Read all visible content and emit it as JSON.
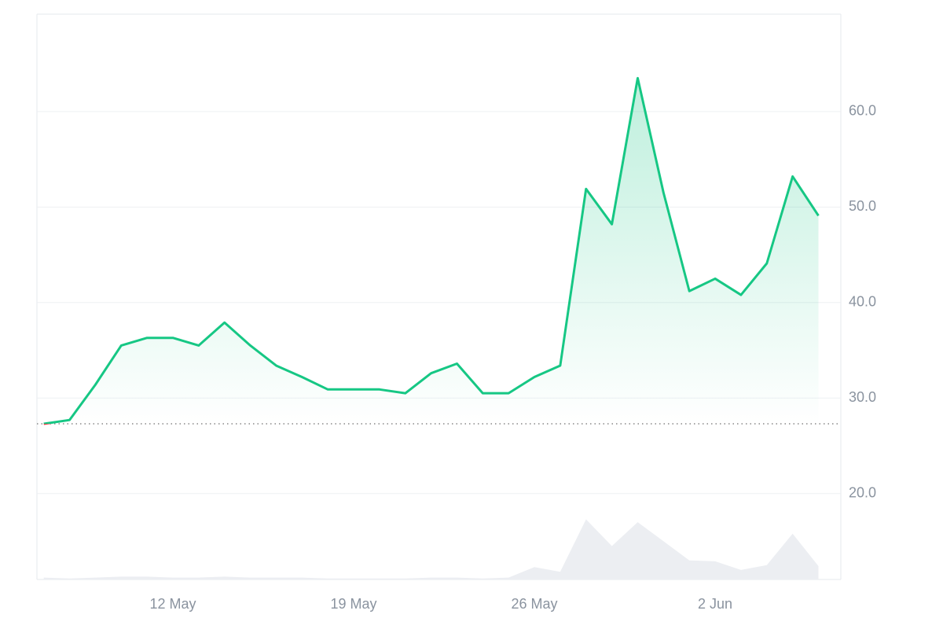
{
  "chart_data": {
    "type": "line",
    "categories": [
      null,
      null,
      null,
      null,
      null,
      "12 May",
      null,
      null,
      null,
      null,
      null,
      null,
      "19 May",
      null,
      null,
      null,
      null,
      null,
      null,
      "26 May",
      null,
      null,
      null,
      null,
      null,
      null,
      "2 Jun",
      null,
      null,
      null,
      null
    ],
    "values": [
      27.3,
      27.7,
      31.4,
      35.5,
      36.3,
      36.3,
      35.5,
      37.9,
      35.5,
      33.4,
      32.2,
      30.9,
      30.9,
      30.9,
      30.5,
      32.6,
      33.6,
      30.5,
      30.5,
      32.2,
      33.4,
      51.9,
      48.2,
      63.5,
      51.5,
      41.2,
      42.5,
      40.8,
      44.1,
      53.2,
      49.1
    ],
    "volume": [
      11.2,
      11.1,
      11.2,
      11.3,
      11.3,
      11.2,
      11.2,
      11.3,
      11.2,
      11.2,
      11.2,
      11.1,
      11.1,
      11.1,
      11.1,
      11.2,
      11.2,
      11.1,
      11.2,
      12.3,
      11.8,
      17.3,
      14.5,
      17.0,
      15.0,
      13.0,
      12.9,
      12.0,
      12.5,
      15.8,
      12.4
    ],
    "color": "#16c784",
    "negative_color": "#ea3943",
    "volume_color": "#eceef2",
    "ylim": [
      11,
      70.2
    ],
    "yticks": [
      {
        "value": 20,
        "label": "20.0"
      },
      {
        "value": 30,
        "label": "30.0"
      },
      {
        "value": 40,
        "label": "40.0"
      },
      {
        "value": 50,
        "label": "50.0"
      },
      {
        "value": 60,
        "label": "60.0"
      }
    ],
    "grid": true
  }
}
